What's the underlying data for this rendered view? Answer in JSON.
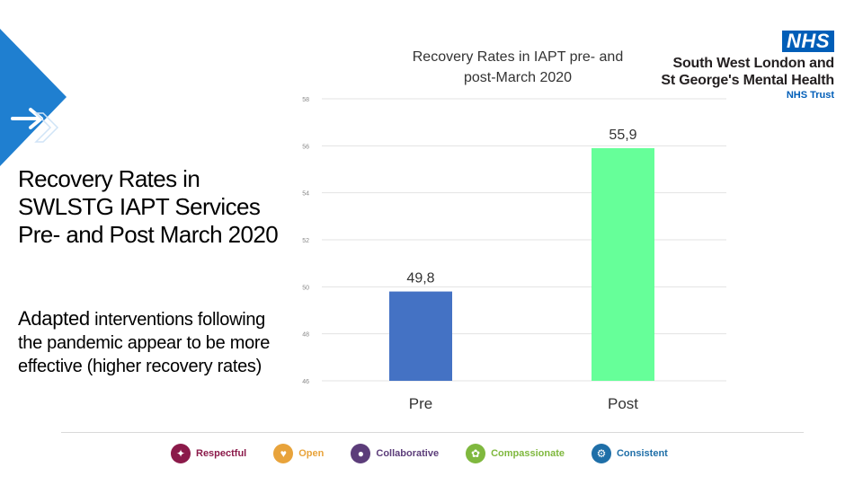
{
  "slide": {
    "title": "Recovery Rates in SWLSTG IAPT Services Pre- and Post March 2020",
    "body_first_word": "Adapted",
    "body_rest": " interventions following the pandemic appear to be more effective (higher recovery rates)"
  },
  "logo": {
    "nhs": "NHS",
    "org_line1": "South West London and",
    "org_line2": "St George's Mental Health",
    "trust": "NHS Trust",
    "nhs_color": "#005EB8"
  },
  "footer_values": [
    {
      "label": "Respectful",
      "icon": "handshake-icon",
      "color": "#8B1A4A",
      "text_color": "#8B1A4A"
    },
    {
      "label": "Open",
      "icon": "heart-icon",
      "color": "#E8A33B",
      "text_color": "#E8A33B"
    },
    {
      "label": "Collaborative",
      "icon": "people-icon",
      "color": "#5C3D7A",
      "text_color": "#5C3D7A"
    },
    {
      "label": "Compassionate",
      "icon": "hands-icon",
      "color": "#7FB83E",
      "text_color": "#7FB83E"
    },
    {
      "label": "Consistent",
      "icon": "cog-icon",
      "color": "#1F6FA8",
      "text_color": "#1F6FA8"
    }
  ],
  "chart_data": {
    "type": "bar",
    "title": "Recovery Rates in IAPT pre- and post-March 2020",
    "categories": [
      "Pre",
      "Post"
    ],
    "values": [
      49.8,
      55.9
    ],
    "data_labels": [
      "49,8",
      "55,9"
    ],
    "colors": [
      "#4472C4",
      "#66FF99"
    ],
    "ylim": [
      46,
      58
    ],
    "yticks": [
      46,
      48,
      50,
      52,
      54,
      56,
      58
    ],
    "grid": true,
    "legend": "none"
  }
}
